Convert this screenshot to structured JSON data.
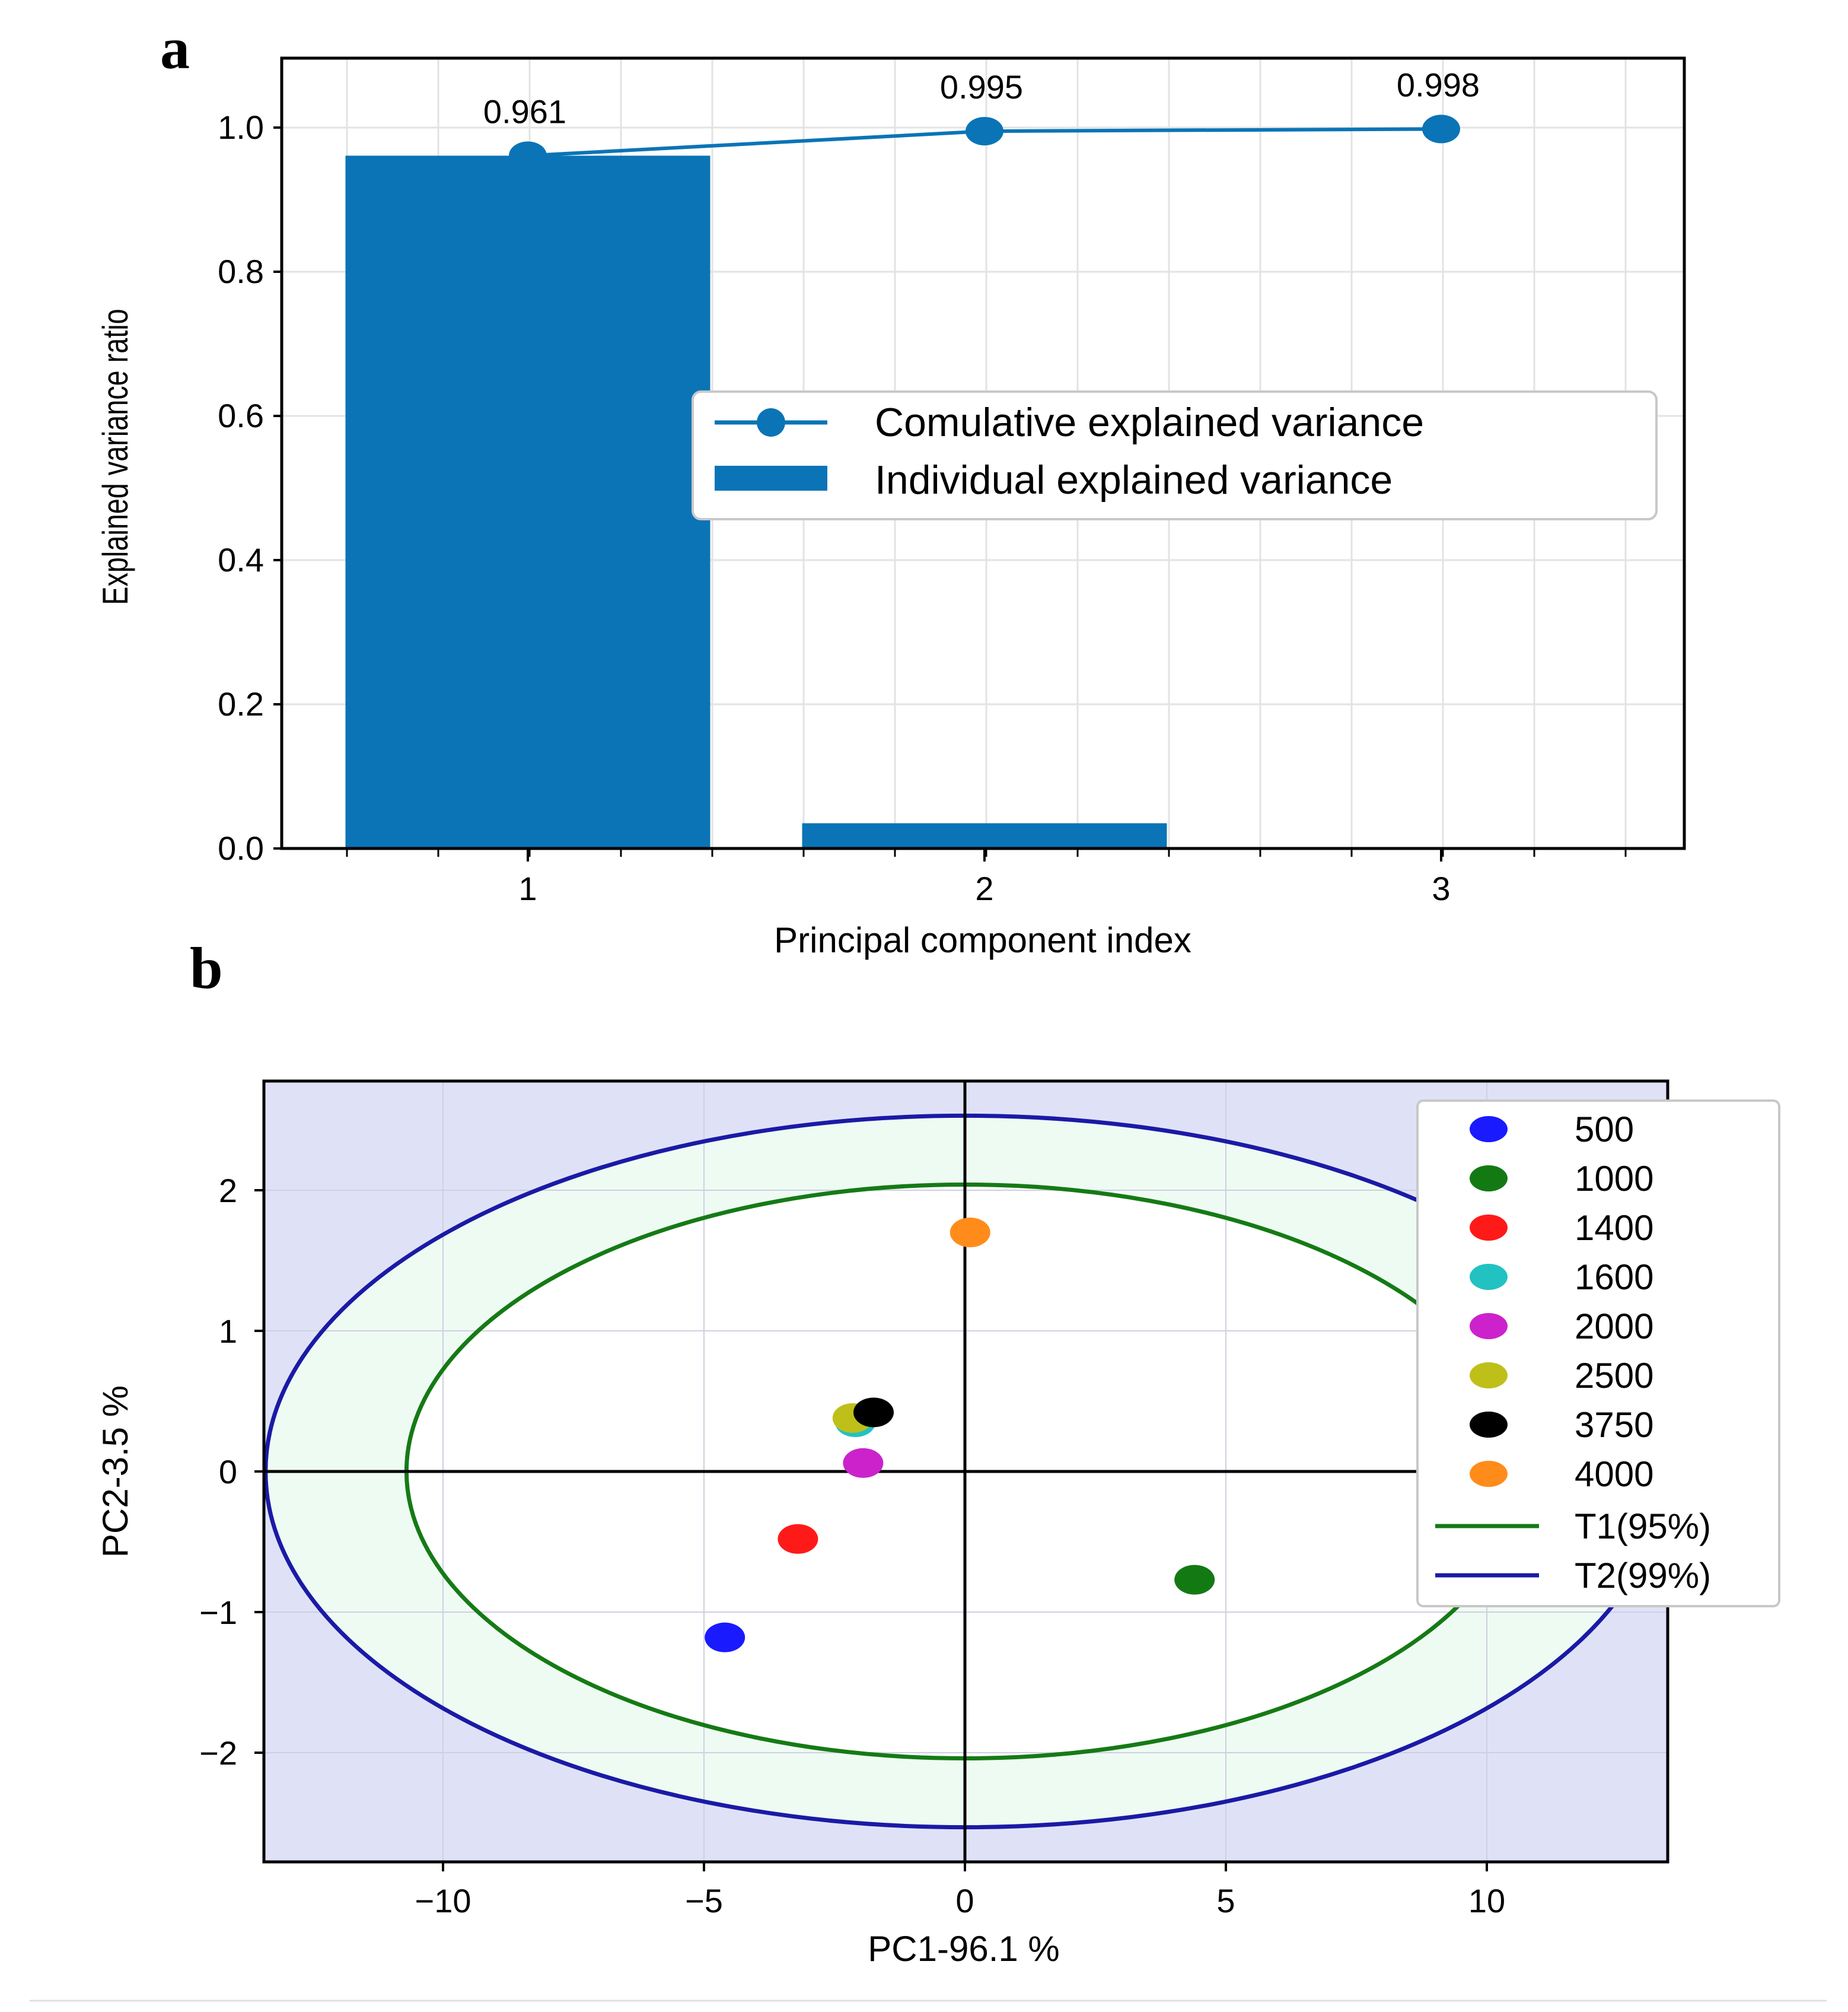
{
  "chart_data": [
    {
      "panel": "a",
      "type": "bar",
      "categories": [
        "1",
        "2",
        "3"
      ],
      "xlabel": "Principal component index",
      "ylabel": "Explained variance ratio",
      "ylim": [
        0,
        1.1
      ],
      "yticks": [
        "0.0",
        "0.2",
        "0.4",
        "0.6",
        "0.8",
        "1.0"
      ],
      "grid": true,
      "legend_position": "center-right",
      "series": [
        {
          "name": "Comulative explained variance",
          "kind": "line",
          "values": [
            0.961,
            0.995,
            0.998
          ],
          "labels": [
            "0.961",
            "0.995",
            "0.998"
          ],
          "color": "#0a74b6"
        },
        {
          "name": "Individual explained variance",
          "kind": "bar",
          "values": [
            0.961,
            0.035,
            0.002
          ],
          "color": "#0a74b6"
        }
      ]
    },
    {
      "panel": "b",
      "type": "scatter",
      "xlabel": "PC1-96.1 %",
      "ylabel": "PC2-3.5 %",
      "xlim": [
        -13.5,
        13.5
      ],
      "ylim": [
        -2.8,
        2.8
      ],
      "xticks": [
        "−10",
        "−5",
        "0",
        "5",
        "10"
      ],
      "yticks": [
        "−2",
        "−1",
        "0",
        "1",
        "2"
      ],
      "grid": true,
      "legend_position": "top-right",
      "background_color": "#dfe2f7",
      "band_color": "#eefbf3",
      "series": [
        {
          "name": "500",
          "color": "#1a1aff",
          "x": -4.6,
          "y": -1.18
        },
        {
          "name": "1000",
          "color": "#137a13",
          "x": 4.4,
          "y": -0.77
        },
        {
          "name": "1400",
          "color": "#ff1a1a",
          "x": -3.2,
          "y": -0.48
        },
        {
          "name": "1600",
          "color": "#22c2c2",
          "x": -2.1,
          "y": 0.35
        },
        {
          "name": "2000",
          "color": "#cc22cc",
          "x": -1.95,
          "y": 0.06
        },
        {
          "name": "2500",
          "color": "#bfbf1a",
          "x": -2.15,
          "y": 0.38
        },
        {
          "name": "3750",
          "color": "#000000",
          "x": -1.75,
          "y": 0.42
        },
        {
          "name": "4000",
          "color": "#ff8c1a",
          "x": 0.1,
          "y": 1.7
        }
      ],
      "ellipses": [
        {
          "name": "T1(95%)",
          "rx": 10.7,
          "ry": 2.04,
          "color": "#157a15"
        },
        {
          "name": "T2(99%)",
          "rx": 13.4,
          "ry": 2.53,
          "color": "#1a1aa6"
        }
      ]
    }
  ]
}
